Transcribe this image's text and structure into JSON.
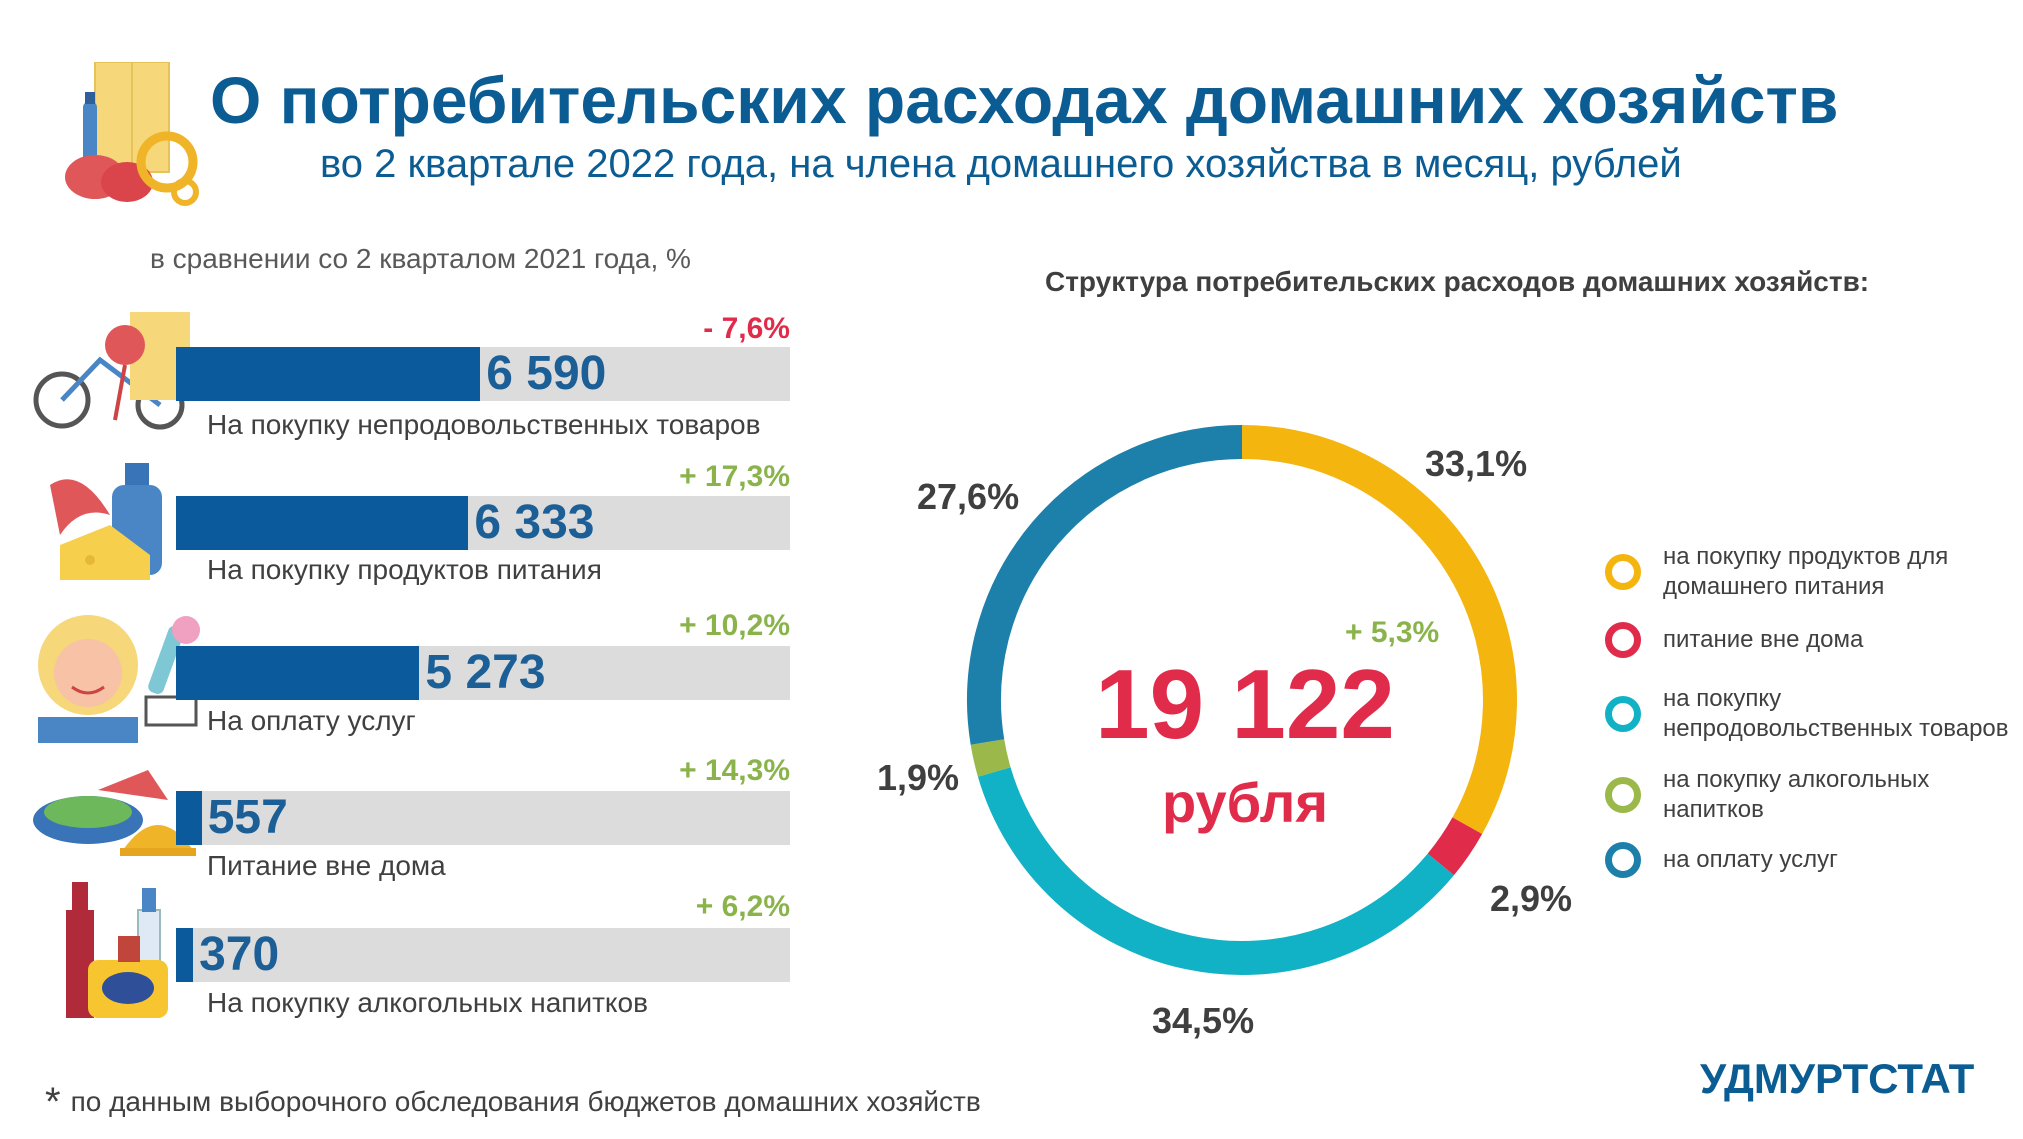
{
  "header": {
    "title": "О потребительских расходах домашних хозяйств",
    "subtitle": "во 2 квартале 2022 года, на члена домашнего хозяйства в месяц, рублей"
  },
  "comparison_note": "в сравнении со 2 кварталом 2021 года, %",
  "structure_title": "Структура потребительских расходов домашних хозяйств:",
  "colors": {
    "food": "#f5b50f",
    "eating_out": "#e02b4a",
    "nonfood": "#11b1c6",
    "alcohol": "#9bb84a",
    "services": "#1d80aa",
    "bar": "#0a5a9c",
    "negative": "#e02b4a",
    "positive": "#8ab44b"
  },
  "chart_data": [
    {
      "type": "bar",
      "orientation": "horizontal",
      "xlim": [
        0,
        13300
      ],
      "categories": [
        "На покупку  непродовольственных товаров",
        "На покупку  продуктов питания",
        "На оплату  услуг",
        "Питание вне дома",
        "На покупку  алкогольных напитков"
      ],
      "values": [
        6590,
        6333,
        5273,
        557,
        370
      ],
      "value_labels": [
        "6 590",
        "6 333",
        "5 273",
        "557",
        "370"
      ],
      "changes": [
        "- 7,6%",
        "+ 17,3%",
        "+ 10,2%",
        "+ 14,3%",
        "+ 6,2%"
      ],
      "icons": [
        "nonfood-goods-icon",
        "food-products-icon",
        "services-icon",
        "eating-out-icon",
        "alcohol-icon"
      ]
    },
    {
      "type": "pie",
      "title": "Структура потребительских расходов домашних хозяйств:",
      "center": {
        "total": "19 122",
        "unit": "рубля",
        "change": "+ 5,3%"
      },
      "slices": [
        {
          "name": "на покупку продуктов для домашнего питания",
          "value": 33.1,
          "label": "33,1%",
          "color": "#f5b50f"
        },
        {
          "name": "питание вне дома",
          "value": 2.9,
          "label": "2,9%",
          "color": "#e02b4a"
        },
        {
          "name": "на покупку непродовольственных товаров",
          "value": 34.5,
          "label": "34,5%",
          "color": "#11b1c6"
        },
        {
          "name": "на покупку алкогольных напитков",
          "value": 1.9,
          "label": "1,9%",
          "color": "#9bb84a"
        },
        {
          "name": "на оплату услуг",
          "value": 27.6,
          "label": "27,6%",
          "color": "#1d80aa"
        }
      ],
      "legend": [
        "на покупку продуктов для домашнего питания",
        "питание вне дома",
        "на покупку непродовольственных товаров",
        "на покупку алкогольных напитков",
        "на оплату услуг"
      ],
      "legend_placement": "right"
    }
  ],
  "footnote": {
    "star": "*",
    "text": "по данным выборочного обследования бюджетов домашних хозяйств"
  },
  "brand": "УДМУРТСТАТ"
}
